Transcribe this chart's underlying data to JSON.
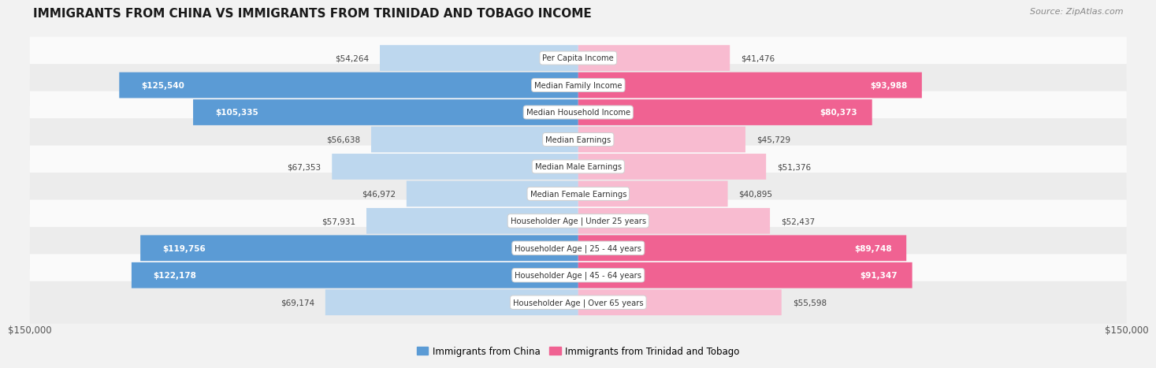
{
  "title": "IMMIGRANTS FROM CHINA VS IMMIGRANTS FROM TRINIDAD AND TOBAGO INCOME",
  "source": "Source: ZipAtlas.com",
  "categories": [
    "Per Capita Income",
    "Median Family Income",
    "Median Household Income",
    "Median Earnings",
    "Median Male Earnings",
    "Median Female Earnings",
    "Householder Age | Under 25 years",
    "Householder Age | 25 - 44 years",
    "Householder Age | 45 - 64 years",
    "Householder Age | Over 65 years"
  ],
  "china_values": [
    54264,
    125540,
    105335,
    56638,
    67353,
    46972,
    57931,
    119756,
    122178,
    69174
  ],
  "tt_values": [
    41476,
    93988,
    80373,
    45729,
    51376,
    40895,
    52437,
    89748,
    91347,
    55598
  ],
  "china_labels": [
    "$54,264",
    "$125,540",
    "$105,335",
    "$56,638",
    "$67,353",
    "$46,972",
    "$57,931",
    "$119,756",
    "$122,178",
    "$69,174"
  ],
  "tt_labels": [
    "$41,476",
    "$93,988",
    "$80,373",
    "$45,729",
    "$51,376",
    "$40,895",
    "$52,437",
    "$89,748",
    "$91,347",
    "$55,598"
  ],
  "china_color_strong": "#5b9bd5",
  "china_color_weak": "#bdd7ee",
  "tt_color_strong": "#f06292",
  "tt_color_weak": "#f8bbd0",
  "max_val": 150000,
  "xlabel_left": "$150,000",
  "xlabel_right": "$150,000",
  "legend_china": "Immigrants from China",
  "legend_tt": "Immigrants from Trinidad and Tobago",
  "bg_color": "#f2f2f2",
  "row_bg_light": "#fafafa",
  "row_bg_dark": "#ececec",
  "china_strong_threshold": 100000,
  "tt_strong_threshold": 80000,
  "label_inside_threshold_china": 100000,
  "label_inside_threshold_tt": 80000
}
